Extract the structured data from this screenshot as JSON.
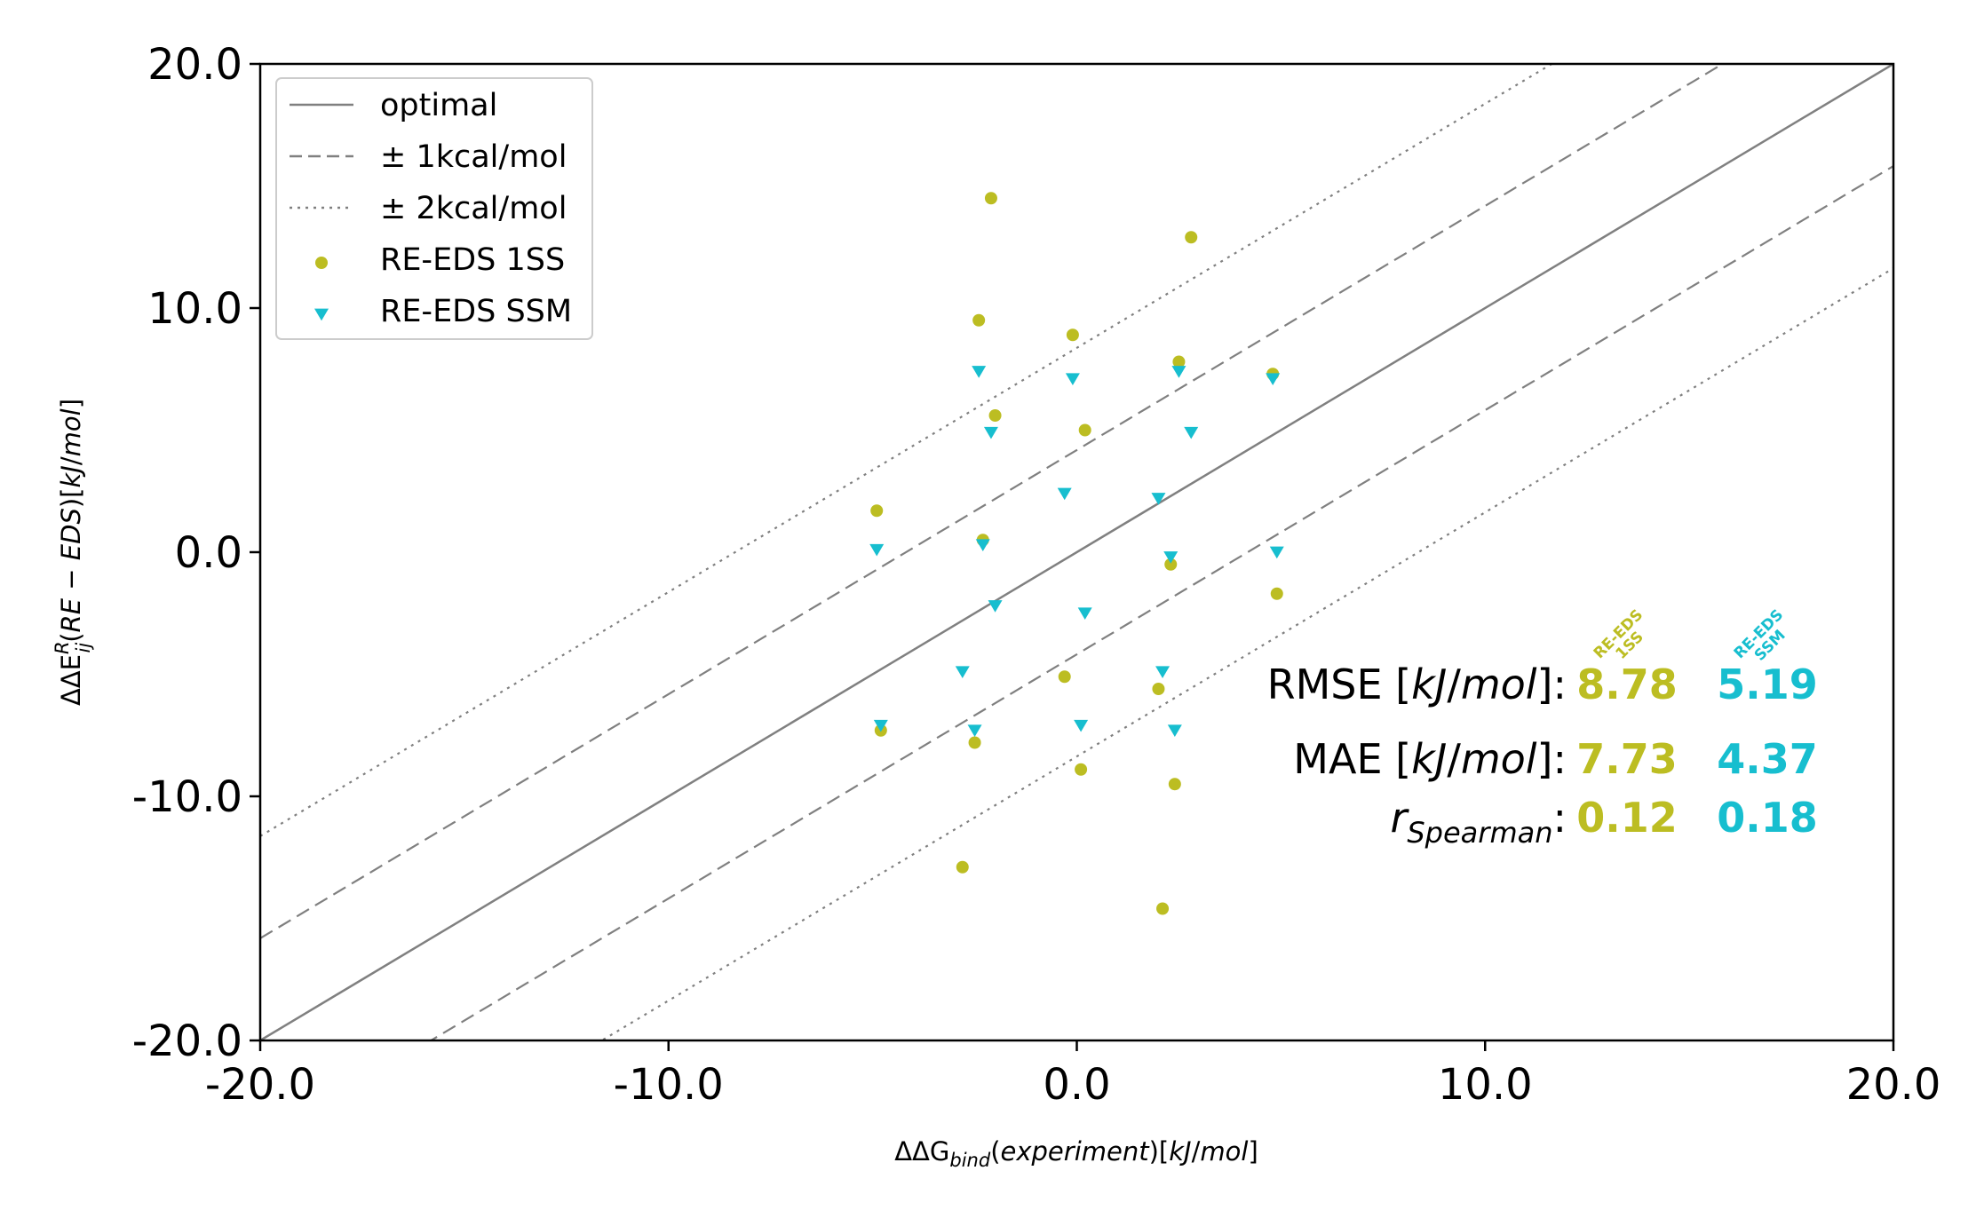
{
  "chart_data": {
    "type": "scatter",
    "title": "",
    "xlabel": "ΔΔG_bind(experiment)[kJ/mol]",
    "ylabel": "ΔΔE_ij^R(RE − EDS)[kJ/mol]",
    "xlim": [
      -20,
      20
    ],
    "ylim": [
      -20,
      20
    ],
    "x_ticks": [
      "-20.0",
      "-10.0",
      "0.0",
      "10.0",
      "20.0"
    ],
    "y_ticks": [
      "-20.0",
      "-10.0",
      "0.0",
      "10.0",
      "20.0"
    ],
    "grid": false,
    "legend": {
      "placement": "upper-left",
      "entries": [
        {
          "label": "optimal",
          "style": "solid-line"
        },
        {
          "label": "± 1kcal/mol",
          "style": "dashed-line"
        },
        {
          "label": "± 2kcal/mol",
          "style": "dotted-line"
        },
        {
          "label": "RE-EDS 1SS",
          "style": "circle"
        },
        {
          "label": "RE-EDS SSM",
          "style": "triangle-down"
        }
      ]
    },
    "reference_lines": [
      {
        "name": "optimal",
        "offset": 0,
        "style": "solid"
      },
      {
        "name": "+1kcal/mol",
        "offset": 4.184,
        "style": "dashed"
      },
      {
        "name": "-1kcal/mol",
        "offset": -4.184,
        "style": "dashed"
      },
      {
        "name": "+2kcal/mol",
        "offset": 8.368,
        "style": "dotted"
      },
      {
        "name": "-2kcal/mol",
        "offset": -8.368,
        "style": "dotted"
      }
    ],
    "series": [
      {
        "name": "RE-EDS 1SS",
        "color": "#bcbd22",
        "marker": "circle",
        "points": [
          [
            -2.1,
            14.5
          ],
          [
            2.8,
            12.9
          ],
          [
            -2.4,
            9.5
          ],
          [
            -0.1,
            8.9
          ],
          [
            2.5,
            7.8
          ],
          [
            4.8,
            7.3
          ],
          [
            -2.0,
            5.6
          ],
          [
            0.2,
            5.0
          ],
          [
            -4.9,
            1.7
          ],
          [
            -2.3,
            0.5
          ],
          [
            2.3,
            -0.5
          ],
          [
            4.9,
            -1.7
          ],
          [
            -0.3,
            -5.1
          ],
          [
            2.0,
            -5.6
          ],
          [
            -4.8,
            -7.3
          ],
          [
            -2.5,
            -7.8
          ],
          [
            0.1,
            -8.9
          ],
          [
            2.4,
            -9.5
          ],
          [
            -2.8,
            -12.9
          ],
          [
            2.1,
            -14.6
          ]
        ]
      },
      {
        "name": "RE-EDS SSM",
        "color": "#17becf",
        "marker": "triangle-down",
        "points": [
          [
            -2.4,
            7.4
          ],
          [
            -0.1,
            7.1
          ],
          [
            2.5,
            7.4
          ],
          [
            4.8,
            7.1
          ],
          [
            -2.1,
            4.9
          ],
          [
            2.8,
            4.9
          ],
          [
            -0.3,
            2.4
          ],
          [
            2.0,
            2.2
          ],
          [
            -4.9,
            0.1
          ],
          [
            -2.3,
            0.3
          ],
          [
            2.3,
            -0.2
          ],
          [
            4.9,
            0.0
          ],
          [
            -2.0,
            -2.2
          ],
          [
            0.2,
            -2.5
          ],
          [
            -2.8,
            -4.9
          ],
          [
            2.1,
            -4.9
          ],
          [
            -4.8,
            -7.1
          ],
          [
            -2.5,
            -7.3
          ],
          [
            0.1,
            -7.1
          ],
          [
            2.4,
            -7.3
          ]
        ]
      }
    ],
    "stats": {
      "columns": [
        {
          "head": "RE-EDS 1SS",
          "color": "#bcbd22"
        },
        {
          "head": "RE-EDS SSM",
          "color": "#17becf"
        }
      ],
      "rows": [
        {
          "label": "RMSE [kJ/mol]:",
          "values": [
            "8.78",
            "5.19"
          ]
        },
        {
          "label": "MAE [kJ/mol]:",
          "values": [
            "7.73",
            "4.37"
          ]
        },
        {
          "label": "r_Spearman:",
          "values": [
            "0.12",
            "0.18"
          ]
        }
      ]
    }
  }
}
